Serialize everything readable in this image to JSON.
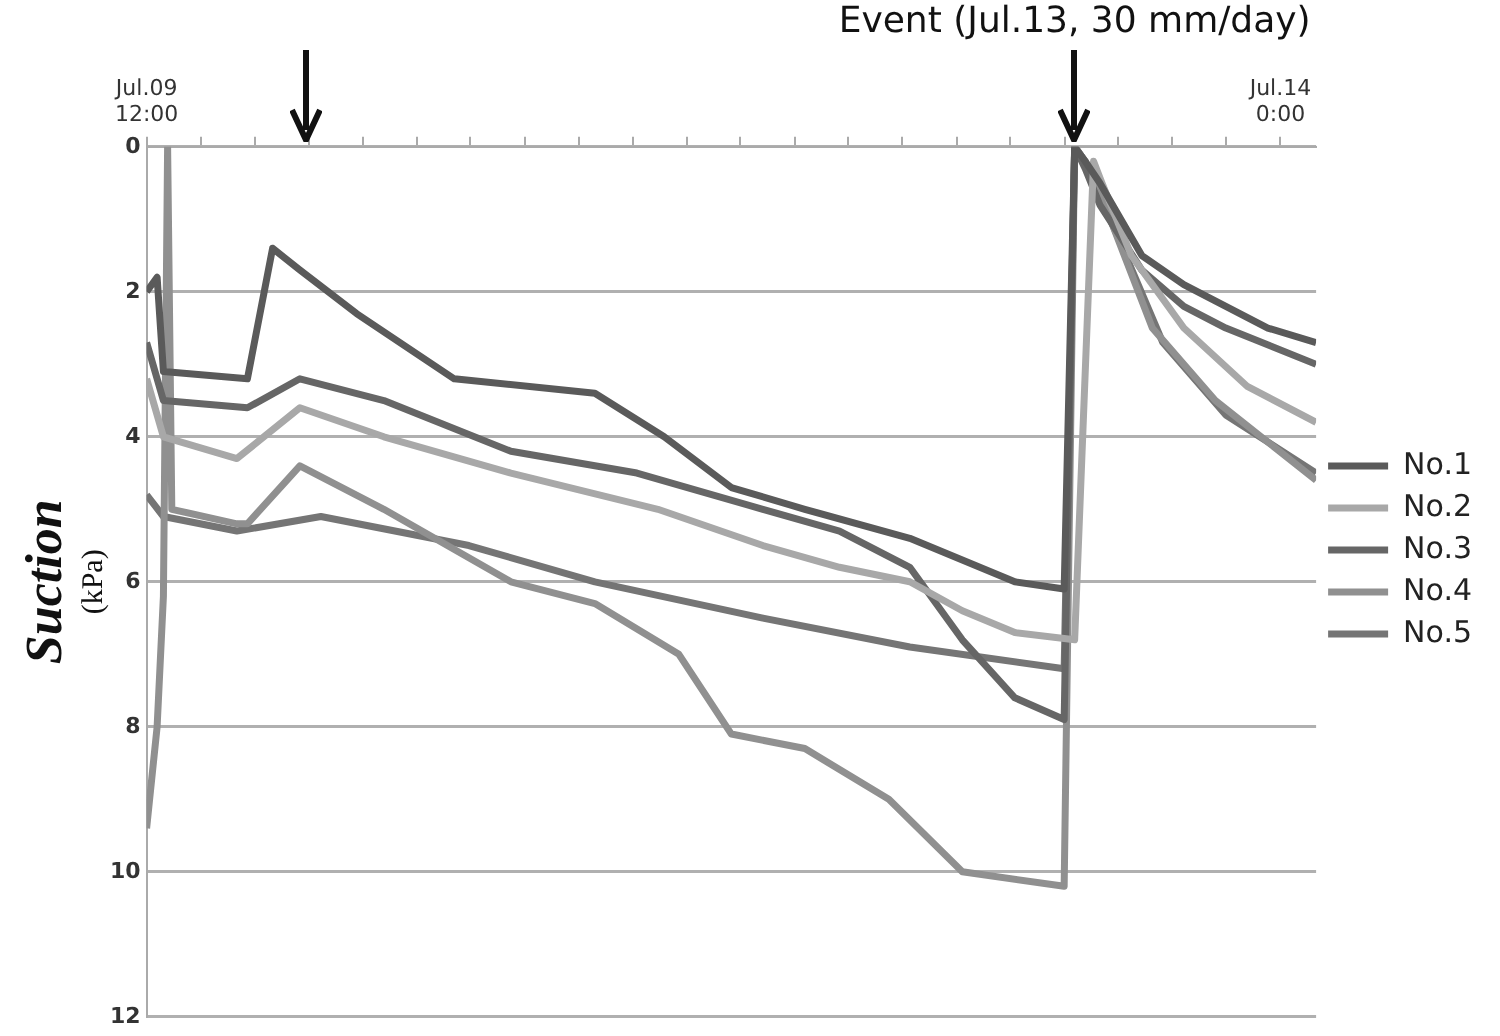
{
  "chart_data": {
    "type": "line",
    "ylabel": "Suction (kPa)",
    "ylim": [
      12,
      0
    ],
    "yticks": [
      0,
      2,
      4,
      6,
      8,
      10,
      12
    ],
    "xlim": [
      "--07-09T12:00",
      "--07-14T03:24"
    ],
    "xticks": [
      {
        "value": "--07-09T12:00",
        "label": "Jul.09 12:00"
      },
      {
        "value": "--07-09T17:09",
        "label": null
      },
      {
        "value": "--07-09T22:17",
        "label": null
      },
      {
        "value": "--07-10T03:26",
        "label": null
      },
      {
        "value": "--07-10T08:34",
        "label": null
      },
      {
        "value": "--07-10T13:43",
        "label": null
      },
      {
        "value": "--07-10T18:51",
        "label": null
      },
      {
        "value": "--07-11T00:00",
        "label": null
      },
      {
        "value": "--07-11T05:09",
        "label": null
      },
      {
        "value": "--07-11T10:17",
        "label": null
      },
      {
        "value": "--07-11T15:26",
        "label": null
      },
      {
        "value": "--07-11T20:34",
        "label": null
      },
      {
        "value": "--07-12T01:43",
        "label": null
      },
      {
        "value": "--07-12T06:51",
        "label": null
      },
      {
        "value": "--07-12T12:00",
        "label": null
      },
      {
        "value": "--07-12T17:09",
        "label": null
      },
      {
        "value": "--07-12T22:17",
        "label": null
      },
      {
        "value": "--07-13T03:26",
        "label": null
      },
      {
        "value": "--07-13T08:34",
        "label": null
      },
      {
        "value": "--07-13T13:43",
        "label": null
      },
      {
        "value": "--07-13T18:51",
        "label": null
      },
      {
        "value": "--07-14T00:00",
        "label": "Jul.14 0:00"
      }
    ],
    "grid": "y",
    "legend": "right",
    "marker": "none",
    "line_style": "solid",
    "annotations": [
      {
        "text": "Event (Jul.13, 30 mm/day)",
        "x": "--07-13T04:24",
        "y": 0
      }
    ],
    "series": [
      {
        "name": "No.1",
        "color": "#5a5a5a",
        "x": [
          "--07-09T12:00",
          "--07-09T13:00",
          "--07-09T13:36",
          "--07-09T21:36",
          "--07-10T00:00",
          "--07-10T02:36",
          "--07-10T08:00",
          "--07-10T17:18",
          "--07-11T06:42",
          "--07-11T13:18",
          "--07-11T19:42",
          "--07-12T02:42",
          "--07-12T12:42",
          "--07-12T22:42",
          "--07-13T03:24",
          "--07-13T04:24",
          "--07-13T05:24",
          "--07-13T06:48",
          "--07-13T10:48",
          "--07-13T14:48",
          "--07-13T18:48",
          "--07-13T22:48",
          "--07-14T03:24"
        ],
        "values": [
          2.0,
          1.8,
          3.1,
          3.2,
          1.4,
          1.7,
          2.3,
          3.2,
          3.4,
          4.0,
          4.7,
          5.0,
          5.4,
          6.0,
          6.1,
          0,
          0.2,
          0.5,
          1.5,
          1.9,
          2.2,
          2.5,
          2.7
        ]
      },
      {
        "name": "No.2",
        "color": "#a8a8a8",
        "x": [
          "--07-09T12:00",
          "--07-09T13:36",
          "--07-09T20:36",
          "--07-10T02:36",
          "--07-10T10:36",
          "--07-10T22:42",
          "--07-11T12:42",
          "--07-11T22:42",
          "--07-12T06:00",
          "--07-12T12:42",
          "--07-12T17:42",
          "--07-12T22:42",
          "--07-13T04:24",
          "--07-13T06:12",
          "--07-13T07:00",
          "--07-13T09:48",
          "--07-13T14:48",
          "--07-13T20:48",
          "--07-14T03:24"
        ],
        "values": [
          3.2,
          4.0,
          4.3,
          3.6,
          4.0,
          4.5,
          5.0,
          5.5,
          5.8,
          6.0,
          6.4,
          6.7,
          6.8,
          0.2,
          0.5,
          1.5,
          2.5,
          3.3,
          3.8
        ]
      },
      {
        "name": "No.3",
        "color": "#666666",
        "x": [
          "--07-09T12:00",
          "--07-09T13:36",
          "--07-09T21:36",
          "--07-10T02:36",
          "--07-10T10:36",
          "--07-10T22:42",
          "--07-11T10:42",
          "--07-11T22:42",
          "--07-12T06:00",
          "--07-12T12:42",
          "--07-12T17:42",
          "--07-12T22:42",
          "--07-13T03:24",
          "--07-13T04:24",
          "--07-13T05:24",
          "--07-13T06:48",
          "--07-13T10:48",
          "--07-13T14:48",
          "--07-13T18:48",
          "--07-14T03:24"
        ],
        "values": [
          2.7,
          3.5,
          3.6,
          3.2,
          3.5,
          4.2,
          4.5,
          5.0,
          5.3,
          5.8,
          6.8,
          7.6,
          7.9,
          0,
          0.3,
          0.8,
          1.7,
          2.2,
          2.5,
          3.0
        ]
      },
      {
        "name": "No.4",
        "color": "#909090",
        "x": [
          "--07-09T12:00",
          "--07-09T13:00",
          "--07-09T13:36",
          "--07-09T14:00",
          "--07-09T14:24",
          "--07-09T20:36",
          "--07-09T21:36",
          "--07-10T02:36",
          "--07-10T10:36",
          "--07-10T22:42",
          "--07-11T06:42",
          "--07-11T14:42",
          "--07-11T19:42",
          "--07-12T02:42",
          "--07-12T10:42",
          "--07-12T17:42",
          "--07-13T03:24",
          "--07-13T04:24",
          "--07-13T05:24",
          "--07-13T07:48",
          "--07-13T11:48",
          "--07-13T17:48",
          "--07-14T03:24"
        ],
        "values": [
          9.4,
          8.0,
          6.2,
          0,
          5.0,
          5.2,
          5.2,
          4.4,
          5.0,
          6.0,
          6.3,
          7.0,
          8.1,
          8.3,
          9.0,
          10.0,
          10.2,
          0,
          0.2,
          1.0,
          2.5,
          3.5,
          4.6
        ]
      },
      {
        "name": "No.5",
        "color": "#757575",
        "x": [
          "--07-09T12:00",
          "--07-09T13:36",
          "--07-09T20:36",
          "--07-10T04:36",
          "--07-10T18:42",
          "--07-11T06:42",
          "--07-11T22:42",
          "--07-12T12:42",
          "--07-13T03:24",
          "--07-13T04:24",
          "--07-13T05:24",
          "--07-13T07:48",
          "--07-13T12:48",
          "--07-13T18:48",
          "--07-14T03:24"
        ],
        "values": [
          4.8,
          5.1,
          5.3,
          5.1,
          5.5,
          6.0,
          6.5,
          6.9,
          7.2,
          0,
          0.2,
          1.0,
          2.7,
          3.7,
          4.5
        ]
      }
    ]
  }
}
